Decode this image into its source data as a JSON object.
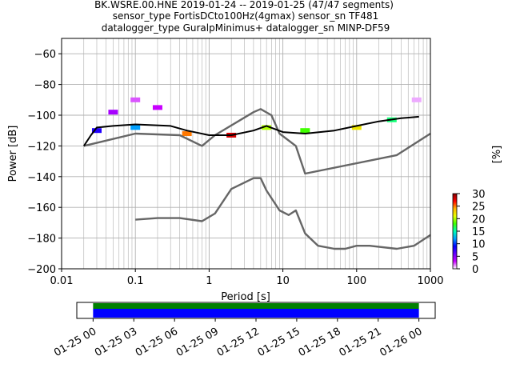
{
  "header": {
    "line1": "BK.WSRE.00.HNE   2019-01-24 -- 2019-01-25  (47/47 segments)",
    "line2": "sensor_type FortisDCto100Hz(4gmax) sensor_sn TF481",
    "line3": "datalogger_type GuralpMinimus+ datalogger_sn MINP-DF59"
  },
  "chart_data": [
    {
      "type": "heatmap",
      "title": "",
      "xlabel": "Period [s]",
      "ylabel": "Power [dB]",
      "x_scale": "log",
      "xlim": [
        0.01,
        1000
      ],
      "ylim": [
        -200,
        -50
      ],
      "grid": true,
      "x_ticks": [
        {
          "value": 0.01,
          "label": "0.01"
        },
        {
          "value": 0.1,
          "label": "0.1"
        },
        {
          "value": 1,
          "label": "1"
        },
        {
          "value": 10,
          "label": "10"
        },
        {
          "value": 100,
          "label": "100"
        },
        {
          "value": 1000,
          "label": "1000"
        }
      ],
      "y_ticks": [
        {
          "value": -60,
          "label": "−60"
        },
        {
          "value": -80,
          "label": "−80"
        },
        {
          "value": -100,
          "label": "−100"
        },
        {
          "value": -120,
          "label": "−120"
        },
        {
          "value": -140,
          "label": "−140"
        },
        {
          "value": -160,
          "label": "−160"
        },
        {
          "value": -180,
          "label": "−180"
        },
        {
          "value": -200,
          "label": "−200"
        }
      ],
      "series": [
        {
          "style": "noise-model",
          "color": "#666666",
          "x": [
            0.02,
            0.1,
            0.4,
            0.8,
            1.2,
            4,
            5,
            7,
            9,
            15,
            20,
            350,
            1000
          ],
          "y": [
            -120,
            -112,
            -113,
            -120,
            -113,
            -98,
            -96,
            -100,
            -112,
            -120,
            -138,
            -126,
            -112
          ]
        },
        {
          "style": "noise-model",
          "color": "#666666",
          "x": [
            0.1,
            0.2,
            0.4,
            0.8,
            1.2,
            2,
            4,
            5,
            6,
            9,
            12,
            15,
            20,
            30,
            50,
            70,
            100,
            150,
            350,
            600,
            1000
          ],
          "y": [
            -168,
            -167,
            -167,
            -169,
            -164,
            -148,
            -141,
            -141,
            -149,
            -162,
            -165,
            -162,
            -177,
            -185,
            -187,
            -187,
            -185,
            -185,
            -187,
            -185,
            -178
          ]
        },
        {
          "style": "mode",
          "color": "#000000",
          "x": [
            0.02,
            0.025,
            0.03,
            0.05,
            0.1,
            0.3,
            0.5,
            1,
            2,
            4,
            6,
            10,
            20,
            50,
            100,
            200,
            400,
            700
          ],
          "y": [
            -120,
            -113,
            -108,
            -107,
            -106,
            -107,
            -110,
            -113,
            -113,
            -110,
            -107,
            -111,
            -112,
            -110,
            -107,
            -104,
            -102,
            -101
          ]
        }
      ],
      "heatmap_cells": [
        {
          "x": 0.1,
          "y": -90,
          "pct": 2
        },
        {
          "x": 0.05,
          "y": -98,
          "pct": 4
        },
        {
          "x": 0.2,
          "y": -95,
          "pct": 3
        },
        {
          "x": 0.03,
          "y": -110,
          "pct": 8
        },
        {
          "x": 0.1,
          "y": -108,
          "pct": 12
        },
        {
          "x": 0.5,
          "y": -112,
          "pct": 25
        },
        {
          "x": 2,
          "y": -113,
          "pct": 28
        },
        {
          "x": 6,
          "y": -108,
          "pct": 20
        },
        {
          "x": 20,
          "y": -110,
          "pct": 18
        },
        {
          "x": 100,
          "y": -108,
          "pct": 22
        },
        {
          "x": 300,
          "y": -103,
          "pct": 16
        },
        {
          "x": 650,
          "y": -90,
          "pct": 1
        }
      ],
      "colorbar": {
        "label": "[%]",
        "ticks": [
          "0",
          "5",
          "10",
          "15",
          "20",
          "25",
          "30"
        ],
        "min": 0,
        "max": 30,
        "colors": [
          "#ffffff",
          "#c800ff",
          "#6400ff",
          "#0000ff",
          "#00a0ff",
          "#00ffb4",
          "#40ff00",
          "#e6ff00",
          "#ffb400",
          "#ff0000",
          "#800000"
        ]
      }
    },
    {
      "type": "bar",
      "title": "",
      "xlabel": "",
      "ylabel": "",
      "series": [
        {
          "color": "#008000",
          "coverage": 1.0
        },
        {
          "color": "#0000ff",
          "coverage": 1.0
        }
      ],
      "x_ticks": [
        {
          "value": 0,
          "label": "01-25 00"
        },
        {
          "value": 3,
          "label": "01-25 03"
        },
        {
          "value": 6,
          "label": "01-25 06"
        },
        {
          "value": 9,
          "label": "01-25 09"
        },
        {
          "value": 12,
          "label": "01-25 12"
        },
        {
          "value": 15,
          "label": "01-25 15"
        },
        {
          "value": 18,
          "label": "01-25 18"
        },
        {
          "value": 21,
          "label": "01-25 21"
        },
        {
          "value": 24,
          "label": "01-26 00"
        }
      ],
      "xlim": [
        -1.2,
        25.2
      ]
    }
  ]
}
